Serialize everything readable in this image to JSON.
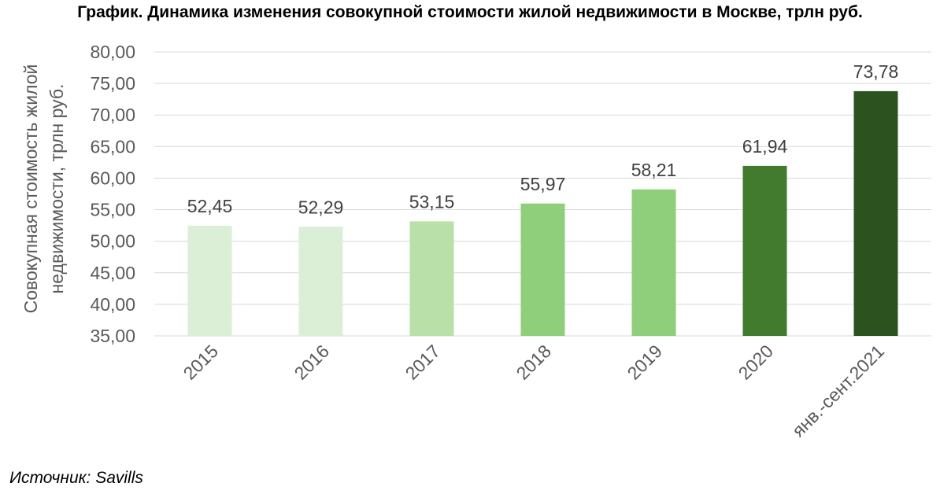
{
  "title": "График. Динамика изменения совокупной стоимости жилой недвижимости в Москве, трлн руб.",
  "source": "Источник: Savills",
  "chart_data": {
    "type": "bar",
    "title": "График. Динамика изменения совокупной стоимости жилой недвижимости в Москве, трлн руб.",
    "xlabel": "",
    "ylabel_lines": [
      "Совокупная стоимость жилой",
      "недвижимости, трлн руб."
    ],
    "categories": [
      "2015",
      "2016",
      "2017",
      "2018",
      "2019",
      "2020",
      "янв.-сент.2021"
    ],
    "values": [
      52.45,
      52.29,
      53.15,
      55.97,
      58.21,
      61.94,
      73.78
    ],
    "data_labels": [
      "52,45",
      "52,29",
      "53,15",
      "55,97",
      "58,21",
      "61,94",
      "73,78"
    ],
    "bar_colors": [
      "#dbefd6",
      "#dbefd6",
      "#b8e0a8",
      "#8fce7a",
      "#8fce7a",
      "#427a2e",
      "#2c5220"
    ],
    "ylim": [
      35,
      80
    ],
    "yticks": [
      35,
      40,
      45,
      50,
      55,
      60,
      65,
      70,
      75,
      80
    ],
    "ytick_labels": [
      "35,00",
      "40,00",
      "45,00",
      "50,00",
      "55,00",
      "60,00",
      "65,00",
      "70,00",
      "75,00",
      "80,00"
    ],
    "grid": true,
    "gridline_color": "#d9d9d9",
    "axis_text_color": "#595959",
    "legend": "none"
  }
}
